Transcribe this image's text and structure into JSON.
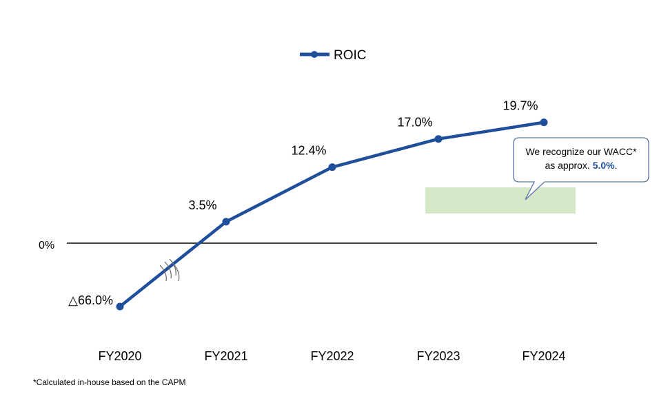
{
  "chart_data": {
    "type": "line",
    "categories": [
      "FY2020",
      "FY2021",
      "FY2022",
      "FY2023",
      "FY2024"
    ],
    "series": [
      {
        "name": "ROIC",
        "values": [
          -66.0,
          3.5,
          12.4,
          17.0,
          19.7
        ],
        "labels": [
          "△66.0%",
          "3.5%",
          "12.4%",
          "17.0%",
          "19.7%"
        ]
      }
    ],
    "zero_label": "0%",
    "axis_break": "between FY2020 and FY2021",
    "legend_position": "top-center",
    "grid": false,
    "colors": {
      "line": "#1f4e9a",
      "wacc_band": "#d5e8c8",
      "callout_border": "#5a74a8"
    },
    "wacc": {
      "value": 5.0
    }
  },
  "callout": {
    "line1": "We recognize our WACC*",
    "line2_prefix": "as approx. ",
    "line2_value": "5.0%",
    "line2_suffix": "."
  },
  "footnote": "*Calculated in-house based on the CAPM"
}
